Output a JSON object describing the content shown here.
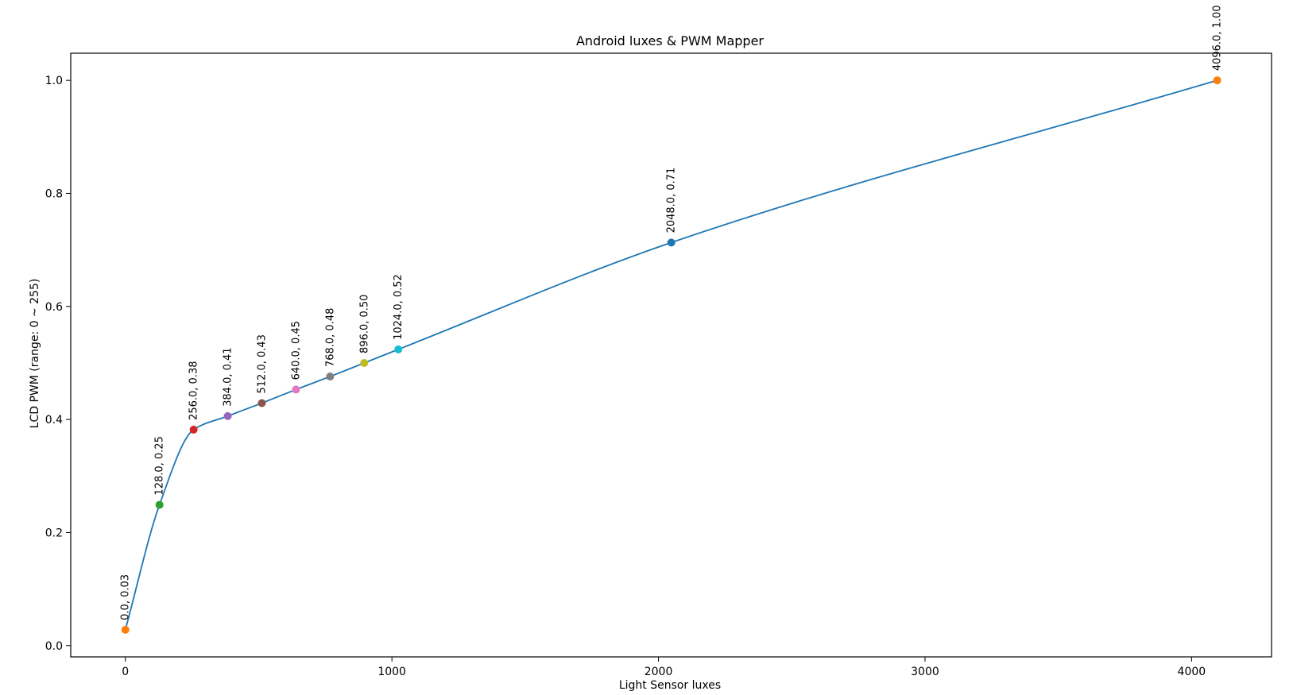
{
  "chart_data": {
    "type": "line",
    "title": "Android luxes & PWM Mapper",
    "xlabel": "Light Sensor luxes",
    "ylabel": "LCD PWM (range: 0 ~ 255)",
    "xlim": [
      -205,
      4300
    ],
    "ylim": [
      -0.02,
      1.048
    ],
    "xticks": [
      0,
      1000,
      2000,
      3000,
      4000
    ],
    "yticks": [
      0.0,
      0.2,
      0.4,
      0.6,
      0.8,
      1.0
    ],
    "xtick_labels": [
      "0",
      "1000",
      "2000",
      "3000",
      "4000"
    ],
    "ytick_labels": [
      "0.0",
      "0.2",
      "0.4",
      "0.6",
      "0.8",
      "1.0"
    ],
    "grid": false,
    "curve_color": "#1f77b4",
    "points": [
      {
        "x": 0.0,
        "y": 0.028,
        "label": "0.0, 0.03",
        "color": "#ff7f0e"
      },
      {
        "x": 128.0,
        "y": 0.249,
        "label": "128.0, 0.25",
        "color": "#2ca02c"
      },
      {
        "x": 256.0,
        "y": 0.382,
        "label": "256.0, 0.38",
        "color": "#d62728"
      },
      {
        "x": 384.0,
        "y": 0.406,
        "label": "384.0, 0.41",
        "color": "#9467bd"
      },
      {
        "x": 512.0,
        "y": 0.429,
        "label": "512.0, 0.43",
        "color": "#8c564b"
      },
      {
        "x": 640.0,
        "y": 0.453,
        "label": "640.0, 0.45",
        "color": "#e377c2"
      },
      {
        "x": 768.0,
        "y": 0.476,
        "label": "768.0, 0.48",
        "color": "#7f7f7f"
      },
      {
        "x": 896.0,
        "y": 0.5,
        "label": "896.0, 0.50",
        "color": "#bcbd22"
      },
      {
        "x": 1024.0,
        "y": 0.524,
        "label": "1024.0, 0.52",
        "color": "#17becf"
      },
      {
        "x": 2048.0,
        "y": 0.713,
        "label": "2048.0, 0.71",
        "color": "#1f77b4"
      },
      {
        "x": 4096.0,
        "y": 1.0,
        "label": "4096.0, 1.00",
        "color": "#ff7f0e"
      }
    ]
  }
}
